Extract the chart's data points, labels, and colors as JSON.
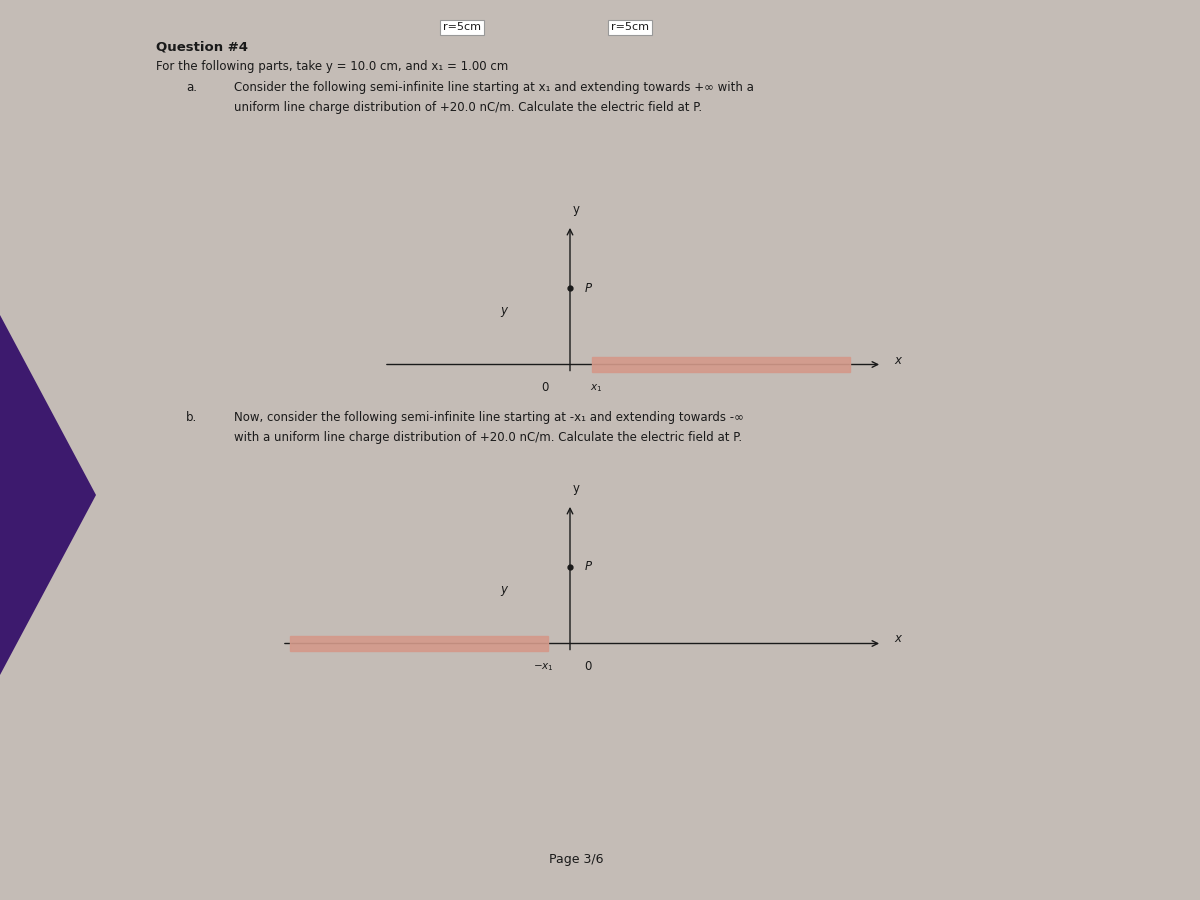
{
  "bg_color": "#c4bcb6",
  "purple_color": "#3d1a6e",
  "text_color": "#1a1a1a",
  "header1": "r=5cm",
  "header2": "r=5cm",
  "question_title": "Question #4",
  "q_line1": "For the following parts, take y = 10.0 cm, and x₁ = 1.00 cm",
  "part_a_label": "a.",
  "part_a_text1": "Consider the following semi-infinite line starting at x₁ and extending towards +∞ with a",
  "part_a_text2": "uniform line charge distribution of +20.0 nC/m. Calculate the electric field at P.",
  "part_b_label": "b.",
  "part_b_text1": "Now, consider the following semi-infinite line starting at -x₁ and extending towards -∞",
  "part_b_text2": "with a uniform line charge distribution of +20.0 nC/m. Calculate the electric field at P.",
  "page_label": "Page 3/6",
  "salmon_color": "#d4998a",
  "axis_color": "#1a1a1a",
  "diag_a_ox": 0.475,
  "diag_a_oy": 0.595,
  "diag_b_ox": 0.475,
  "diag_b_oy": 0.285
}
